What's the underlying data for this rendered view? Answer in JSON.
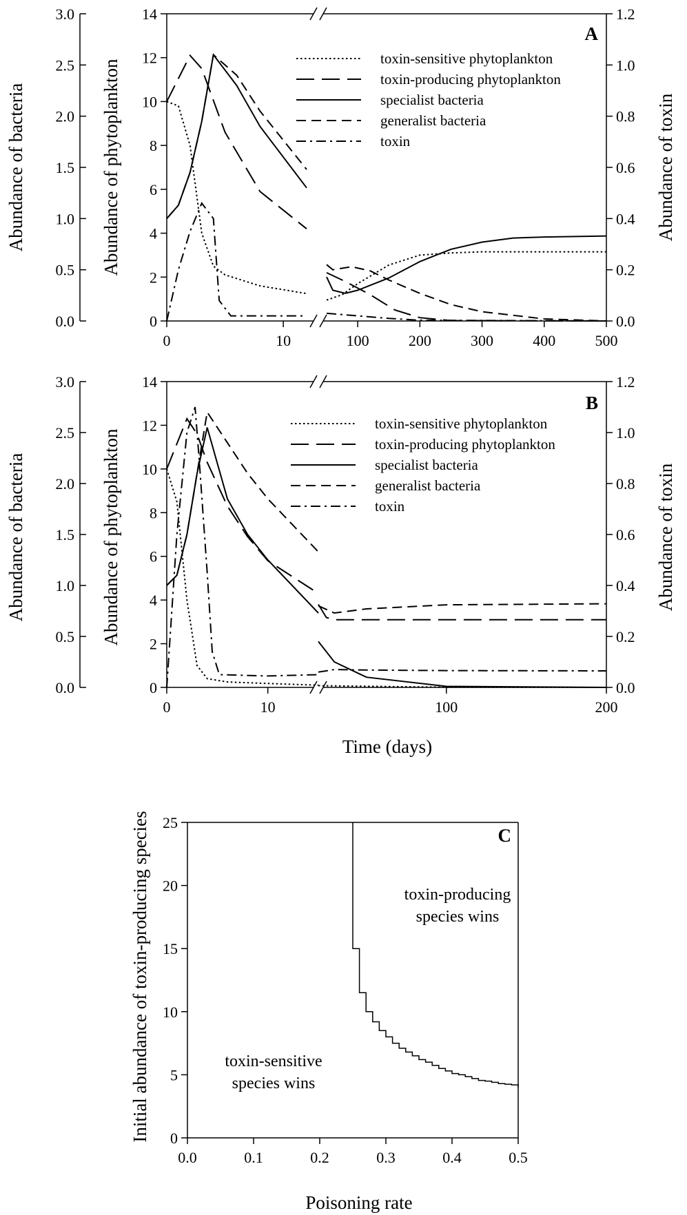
{
  "figure": {
    "time_label": "Time (days)"
  },
  "chart_data": [
    {
      "type": "line",
      "panel_label": "A",
      "ylabel_left_outer": "Abundance of bacteria",
      "ylabel_left_inner": "Abundance of phytoplankton",
      "ylabel_right": "Abundance of toxin",
      "bacteria_ticks": [
        "0.0",
        "0.5",
        "1.0",
        "1.5",
        "2.0",
        "2.5",
        "3.0"
      ],
      "bacteria_ylim": [
        0,
        3
      ],
      "phyto_ticks": [
        "0",
        "2",
        "4",
        "6",
        "8",
        "10",
        "12",
        "14"
      ],
      "phyto_ylim": [
        0,
        14
      ],
      "toxin_ticks": [
        "0.0",
        "0.2",
        "0.4",
        "0.6",
        "0.8",
        "1.0",
        "1.2"
      ],
      "toxin_ylim": [
        0,
        1.2
      ],
      "x_segments": [
        {
          "range": [
            0,
            12
          ],
          "tick_values": [
            0,
            10
          ],
          "tick_labels": [
            "0",
            "10"
          ]
        },
        {
          "range": [
            50,
            500
          ],
          "tick_values": [
            100,
            200,
            300,
            400,
            500
          ],
          "tick_labels": [
            "100",
            "200",
            "300",
            "400",
            "500"
          ]
        }
      ],
      "axis_break": true,
      "legend": [
        "toxin-sensitive phytoplankton",
        "toxin-producing phytoplankton",
        "specialist bacteria",
        "generalist bacteria",
        "toxin"
      ],
      "series": [
        {
          "name": "toxin-sensitive phytoplankton",
          "axis": "phytoplankton",
          "style": "dotted",
          "points": [
            [
              0,
              10
            ],
            [
              1,
              9.8
            ],
            [
              2,
              8
            ],
            [
              3,
              4
            ],
            [
              4,
              2.5
            ],
            [
              5,
              2.1
            ],
            [
              8,
              1.6
            ],
            [
              12,
              1.25
            ],
            [
              50,
              0.95
            ],
            [
              75,
              1.2
            ],
            [
              100,
              1.7
            ],
            [
              150,
              2.55
            ],
            [
              200,
              3.0
            ],
            [
              250,
              3.1
            ],
            [
              300,
              3.15
            ],
            [
              500,
              3.15
            ]
          ]
        },
        {
          "name": "toxin-producing phytoplankton",
          "axis": "phytoplankton",
          "style": "longdash",
          "points": [
            [
              0,
              10
            ],
            [
              2,
              12.1
            ],
            [
              3,
              11.5
            ],
            [
              5,
              8.6
            ],
            [
              8,
              5.9
            ],
            [
              12,
              4.2
            ],
            [
              50,
              2.2
            ],
            [
              80,
              1.8
            ],
            [
              120,
              1.2
            ],
            [
              160,
              0.5
            ],
            [
              200,
              0.15
            ],
            [
              250,
              0.02
            ],
            [
              500,
              0
            ]
          ]
        },
        {
          "name": "specialist bacteria",
          "axis": "bacteria",
          "style": "solid",
          "points": [
            [
              0,
              1
            ],
            [
              1,
              1.13
            ],
            [
              2,
              1.45
            ],
            [
              3,
              1.95
            ],
            [
              4,
              2.6
            ],
            [
              6,
              2.3
            ],
            [
              8,
              1.9
            ],
            [
              12,
              1.3
            ],
            [
              50,
              0.43
            ],
            [
              60,
              0.3
            ],
            [
              80,
              0.27
            ],
            [
              100,
              0.3
            ],
            [
              150,
              0.42
            ],
            [
              200,
              0.58
            ],
            [
              250,
              0.7
            ],
            [
              300,
              0.77
            ],
            [
              350,
              0.81
            ],
            [
              400,
              0.82
            ],
            [
              500,
              0.83
            ]
          ]
        },
        {
          "name": "generalist bacteria",
          "axis": "bacteria",
          "style": "dash",
          "points": [
            [
              0,
              1
            ],
            [
              1,
              1.13
            ],
            [
              2,
              1.45
            ],
            [
              3,
              1.95
            ],
            [
              4,
              2.6
            ],
            [
              6,
              2.4
            ],
            [
              8,
              2.05
            ],
            [
              12,
              1.48
            ],
            [
              50,
              0.55
            ],
            [
              60,
              0.5
            ],
            [
              90,
              0.53
            ],
            [
              120,
              0.49
            ],
            [
              150,
              0.4
            ],
            [
              200,
              0.27
            ],
            [
              250,
              0.16
            ],
            [
              300,
              0.09
            ],
            [
              400,
              0.02
            ],
            [
              500,
              0
            ]
          ]
        },
        {
          "name": "toxin",
          "axis": "toxin",
          "style": "dashdot",
          "points": [
            [
              0,
              0
            ],
            [
              1,
              0.2
            ],
            [
              2,
              0.35
            ],
            [
              3,
              0.46
            ],
            [
              4,
              0.4
            ],
            [
              4.5,
              0.08
            ],
            [
              5.5,
              0.02
            ],
            [
              8,
              0.02
            ],
            [
              12,
              0.02
            ],
            [
              50,
              0.03
            ],
            [
              100,
              0.02
            ],
            [
              150,
              0.01
            ],
            [
              200,
              0.003
            ],
            [
              500,
              0
            ]
          ]
        }
      ]
    },
    {
      "type": "line",
      "panel_label": "B",
      "ylabel_left_outer": "Abundance of bacteria",
      "ylabel_left_inner": "Abundance of phytoplankton",
      "ylabel_right": "Abundance of toxin",
      "xlabel": "Time (days)",
      "bacteria_ticks": [
        "0.0",
        "0.5",
        "1.0",
        "1.5",
        "2.0",
        "2.5",
        "3.0"
      ],
      "bacteria_ylim": [
        0,
        3
      ],
      "phyto_ticks": [
        "0",
        "2",
        "4",
        "6",
        "8",
        "10",
        "12",
        "14"
      ],
      "phyto_ylim": [
        0,
        14
      ],
      "toxin_ticks": [
        "0.0",
        "0.2",
        "0.4",
        "0.6",
        "0.8",
        "1.0",
        "1.2"
      ],
      "toxin_ylim": [
        0,
        1.2
      ],
      "x_segments": [
        {
          "range": [
            0,
            15
          ],
          "tick_values": [
            0,
            10
          ],
          "tick_labels": [
            "0",
            "10"
          ]
        },
        {
          "range": [
            20,
            200
          ],
          "tick_values": [
            100,
            200
          ],
          "tick_labels": [
            "100",
            "200"
          ]
        }
      ],
      "axis_break": true,
      "legend": [
        "toxin-sensitive phytoplankton",
        "toxin-producing phytoplankton",
        "specialist bacteria",
        "generalist bacteria",
        "toxin"
      ],
      "series": [
        {
          "name": "toxin-sensitive phytoplankton",
          "axis": "phytoplankton",
          "style": "dotted",
          "points": [
            [
              0,
              10
            ],
            [
              1,
              8.5
            ],
            [
              2,
              4
            ],
            [
              3,
              1
            ],
            [
              4,
              0.4
            ],
            [
              6,
              0.25
            ],
            [
              10,
              0.18
            ],
            [
              15,
              0.1
            ],
            [
              20,
              0.08
            ],
            [
              50,
              0.05
            ],
            [
              100,
              0.01
            ],
            [
              200,
              0
            ]
          ]
        },
        {
          "name": "toxin-producing phytoplankton",
          "axis": "phytoplankton",
          "style": "longdash",
          "points": [
            [
              0,
              10
            ],
            [
              2,
              12.3
            ],
            [
              3,
              11.6
            ],
            [
              4,
              10.3
            ],
            [
              6,
              8.3
            ],
            [
              8,
              6.9
            ],
            [
              10,
              5.8
            ],
            [
              15,
              4.3
            ],
            [
              20,
              3.8
            ],
            [
              25,
              3.2
            ],
            [
              30,
              3.1
            ],
            [
              50,
              3.1
            ],
            [
              100,
              3.1
            ],
            [
              200,
              3.1
            ]
          ]
        },
        {
          "name": "specialist bacteria",
          "axis": "bacteria",
          "style": "solid",
          "points": [
            [
              0,
              1
            ],
            [
              1,
              1.1
            ],
            [
              2,
              1.5
            ],
            [
              3,
              2.1
            ],
            [
              4,
              2.55
            ],
            [
              5,
              2.2
            ],
            [
              6,
              1.85
            ],
            [
              8,
              1.5
            ],
            [
              10,
              1.25
            ],
            [
              15,
              0.73
            ],
            [
              20,
              0.45
            ],
            [
              30,
              0.25
            ],
            [
              50,
              0.1
            ],
            [
              100,
              0.01
            ],
            [
              200,
              0
            ]
          ]
        },
        {
          "name": "generalist bacteria",
          "axis": "bacteria",
          "style": "dash",
          "points": [
            [
              0,
              1
            ],
            [
              1,
              1.1
            ],
            [
              2,
              1.5
            ],
            [
              3,
              2.1
            ],
            [
              4,
              2.7
            ],
            [
              6,
              2.4
            ],
            [
              8,
              2.1
            ],
            [
              10,
              1.85
            ],
            [
              15,
              1.33
            ],
            [
              20,
              0.8
            ],
            [
              30,
              0.73
            ],
            [
              50,
              0.77
            ],
            [
              100,
              0.81
            ],
            [
              200,
              0.82
            ]
          ]
        },
        {
          "name": "toxin",
          "axis": "toxin",
          "style": "dashdot",
          "points": [
            [
              0,
              0
            ],
            [
              1,
              0.6
            ],
            [
              2,
              1.0
            ],
            [
              2.8,
              1.1
            ],
            [
              3.2,
              0.9
            ],
            [
              4,
              0.45
            ],
            [
              4.5,
              0.14
            ],
            [
              5.2,
              0.05
            ],
            [
              10,
              0.045
            ],
            [
              15,
              0.05
            ],
            [
              20,
              0.06
            ],
            [
              30,
              0.07
            ],
            [
              50,
              0.068
            ],
            [
              100,
              0.066
            ],
            [
              200,
              0.065
            ]
          ]
        }
      ]
    },
    {
      "type": "line",
      "panel_label": "C",
      "xlabel": "Poisoning rate",
      "ylabel": "Initial abundance of toxin-producing species",
      "xlim": [
        0,
        0.5
      ],
      "ylim": [
        0,
        25
      ],
      "x_tick_labels": [
        "0.0",
        "0.1",
        "0.2",
        "0.3",
        "0.4",
        "0.5"
      ],
      "y_tick_labels": [
        "0",
        "5",
        "10",
        "15",
        "20",
        "25"
      ],
      "region_labels": {
        "upper_right": [
          "toxin-producing",
          "species wins"
        ],
        "lower_left": [
          "toxin-sensitive",
          "species wins"
        ]
      },
      "boundary_steps": [
        [
          0.25,
          25
        ],
        [
          0.25,
          15
        ],
        [
          0.26,
          11.5
        ],
        [
          0.27,
          10
        ],
        [
          0.28,
          9.2
        ],
        [
          0.29,
          8.5
        ],
        [
          0.3,
          8.0
        ],
        [
          0.31,
          7.5
        ],
        [
          0.32,
          7.1
        ],
        [
          0.33,
          6.8
        ],
        [
          0.34,
          6.5
        ],
        [
          0.35,
          6.2
        ],
        [
          0.36,
          6.0
        ],
        [
          0.37,
          5.75
        ],
        [
          0.38,
          5.5
        ],
        [
          0.39,
          5.3
        ],
        [
          0.4,
          5.1
        ],
        [
          0.41,
          5.0
        ],
        [
          0.42,
          4.85
        ],
        [
          0.43,
          4.7
        ],
        [
          0.44,
          4.55
        ],
        [
          0.45,
          4.5
        ],
        [
          0.46,
          4.4
        ],
        [
          0.47,
          4.3
        ],
        [
          0.48,
          4.25
        ],
        [
          0.49,
          4.2
        ],
        [
          0.5,
          4.0
        ]
      ]
    }
  ]
}
